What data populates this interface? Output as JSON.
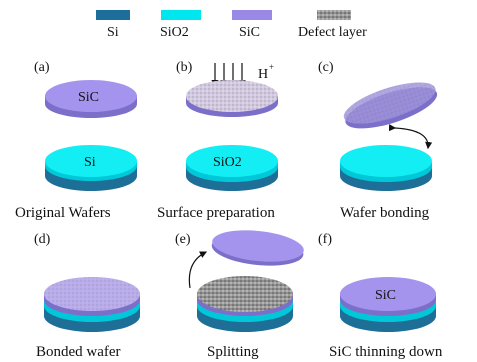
{
  "legend": [
    {
      "label": "Si",
      "color": "#1b6f9a"
    },
    {
      "label": "SiO2",
      "color": "#00e6ee"
    },
    {
      "label": "SiC",
      "color": "#9a88e6"
    },
    {
      "label": "Defect layer",
      "color": "#888888"
    }
  ],
  "panels": {
    "a": {
      "letter": "(a)",
      "top_label": "SiC",
      "bottom_label": "Si",
      "caption": "Original Wafers"
    },
    "b": {
      "letter": "(b)",
      "ion_label": "H",
      "ion_charge": "+",
      "bottom_label": "SiO2",
      "caption": "Surface preparation"
    },
    "c": {
      "letter": "(c)",
      "caption": "Wafer bonding"
    },
    "d": {
      "letter": "(d)",
      "caption": "Bonded wafer"
    },
    "e": {
      "letter": "(e)",
      "caption": "Splitting"
    },
    "f": {
      "letter": "(f)",
      "top_label": "SiC",
      "caption": "SiC thinning down"
    }
  },
  "colors": {
    "si_side": "#1e6f98",
    "si_top": "#2a8dbd",
    "sio2_side": "#00c8d8",
    "sio2_top": "#12eef3",
    "sic_side": "#7b6fc9",
    "sic_top": "#a594ee",
    "defect": "#9a9a9a"
  }
}
